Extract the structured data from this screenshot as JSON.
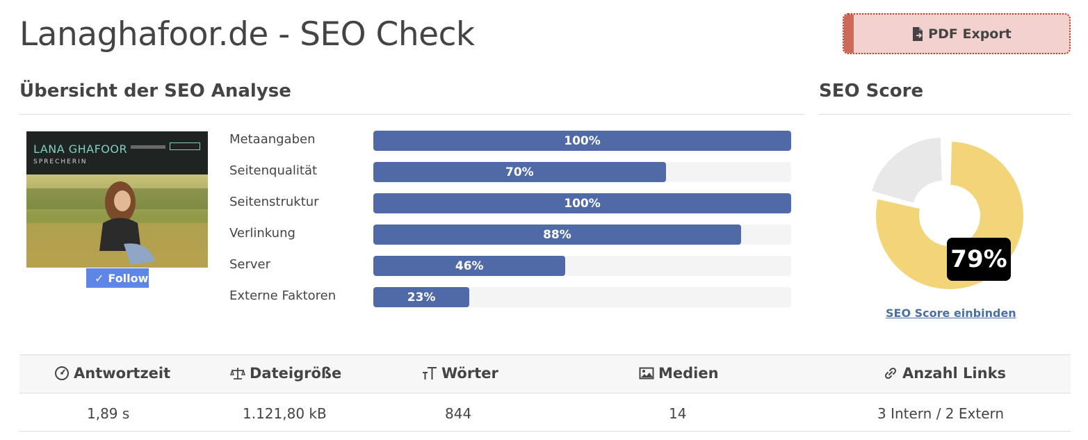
{
  "header": {
    "title": "Lanaghafoor.de - SEO Check",
    "pdf_export_label": "PDF Export"
  },
  "overview": {
    "title": "Übersicht der SEO Analyse",
    "thumbnail": {
      "site_name": "LANA GHAFOOR",
      "site_subtitle": "SPRECHERIN",
      "follow_label": "Follow"
    },
    "metrics": [
      {
        "label": "Metaangaben",
        "value": 100,
        "display": "100%"
      },
      {
        "label": "Seitenqualität",
        "value": 70,
        "display": "70%"
      },
      {
        "label": "Seitenstruktur",
        "value": 100,
        "display": "100%"
      },
      {
        "label": "Verlinkung",
        "value": 88,
        "display": "88%"
      },
      {
        "label": "Server",
        "value": 46,
        "display": "46%"
      },
      {
        "label": "Externe Faktoren",
        "value": 23,
        "display": "23%"
      }
    ]
  },
  "score": {
    "title": "SEO Score",
    "value": 79,
    "display": "79%",
    "embed_label": "SEO Score einbinden",
    "colors": {
      "filled": "#f2d479",
      "remainder": "#e8e8e8"
    }
  },
  "stats": [
    {
      "icon": "speedometer-icon",
      "label": "Antwortzeit",
      "value": "1,89 s"
    },
    {
      "icon": "scale-icon",
      "label": "Dateigröße",
      "value": "1.121,80 kB"
    },
    {
      "icon": "text-size-icon",
      "label": "Wörter",
      "value": "844"
    },
    {
      "icon": "image-icon",
      "label": "Medien",
      "value": "14"
    },
    {
      "icon": "link-icon",
      "label": "Anzahl Links",
      "value": "3 Intern / 2 Extern"
    }
  ],
  "colors": {
    "bar": "#5069a7",
    "track": "#f4f4f4",
    "pdf_button": "#f3d1cf",
    "link": "#4a6fa5"
  }
}
